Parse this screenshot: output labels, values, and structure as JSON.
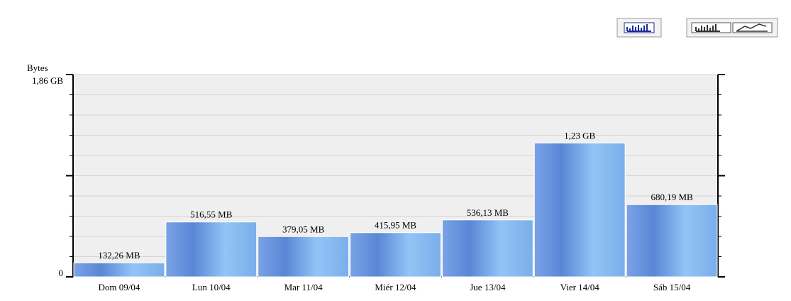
{
  "chart_data": {
    "type": "bar",
    "y_label": "Bytes",
    "categories": [
      "Dom 09/04",
      "Lun 10/04",
      "Mar 11/04",
      "Miér 12/04",
      "Jue 13/04",
      "Vier 14/04",
      "Sáb 15/04"
    ],
    "values": [
      132.26,
      516.55,
      379.05,
      415.95,
      536.13,
      1259.52,
      680.19
    ],
    "value_labels": [
      "132,26 MB",
      "516,55 MB",
      "379,05 MB",
      "415,95 MB",
      "536,13 MB",
      "1,23 GB",
      "680,19 MB"
    ],
    "color": "#6f9de6",
    "ylim": [
      0,
      1904.64
    ],
    "yticks": [
      0,
      {
        "value": 1904.64,
        "label": "1,86 GB"
      }
    ],
    "grid": true
  }
}
